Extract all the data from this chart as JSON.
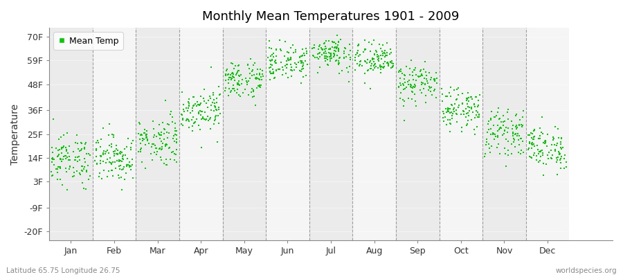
{
  "title": "Monthly Mean Temperatures 1901 - 2009",
  "ylabel": "Temperature",
  "subtitle_left": "Latitude 65.75 Longitude 26.75",
  "subtitle_right": "worldspecies.org",
  "legend_label": "Mean Temp",
  "dot_color": "#00cc00",
  "dot_size": 3,
  "years": 109,
  "months": [
    "Jan",
    "Feb",
    "Mar",
    "Apr",
    "May",
    "Jun",
    "Jul",
    "Aug",
    "Sep",
    "Oct",
    "Nov",
    "Dec"
  ],
  "ytick_labels": [
    "-20F",
    "-9F",
    "3F",
    "14F",
    "25F",
    "36F",
    "48F",
    "59F",
    "70F"
  ],
  "ytick_values": [
    -20,
    -9,
    3,
    14,
    25,
    36,
    48,
    59,
    70
  ],
  "ylim": [
    -24,
    74
  ],
  "xlim": [
    0,
    13
  ],
  "bg_even": "#ebebeb",
  "bg_odd": "#f5f5f5",
  "month_means_C": [
    -10.5,
    -10.0,
    -5.5,
    2.5,
    10.0,
    14.5,
    17.0,
    15.0,
    9.0,
    2.5,
    -3.5,
    -7.5
  ],
  "month_stds_C": [
    3.2,
    3.0,
    3.2,
    2.8,
    2.5,
    2.3,
    2.2,
    2.3,
    2.5,
    2.5,
    2.8,
    2.8
  ]
}
